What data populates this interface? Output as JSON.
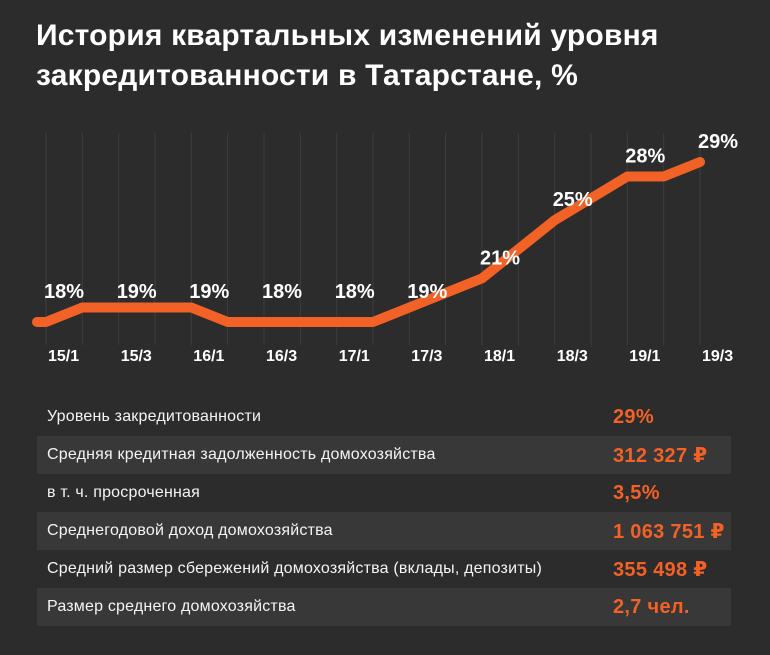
{
  "page": {
    "background": "#2C2C2C",
    "accent_color": "#F26125",
    "text_color": "#FFFFFF"
  },
  "title": {
    "full": "История квартальных изменений уровня закредитованности в Татарстане, %",
    "lines": [
      "История квартальных изменений уровня",
      "закредитованности в Татарстане, %"
    ]
  },
  "chart_data": {
    "type": "line",
    "title": "История квартальных изменений уровня закредитованности в Татарстане, %",
    "series_name": "Уровень закредитованности",
    "unit": "%",
    "categories": [
      "15/1",
      "15/3",
      "16/1",
      "16/3",
      "17/1",
      "17/3",
      "18/1",
      "18/3",
      "19/1",
      "19/3"
    ],
    "values": [
      18,
      19,
      19,
      18,
      18,
      19,
      21,
      25,
      28,
      29
    ],
    "interpolated_quarter_values": [
      18,
      19,
      19,
      19,
      19,
      18,
      18,
      18,
      18,
      18,
      19,
      20,
      21,
      23,
      25,
      26.5,
      28,
      28,
      29
    ],
    "ylim": [
      16,
      31
    ],
    "grid": "vertical-only",
    "legend_position": "none",
    "line_color": "#F26125",
    "data_label_color": "#FFFFFF",
    "gridline_color": "#3E3E3E"
  },
  "table": {
    "rows": [
      {
        "label": "Уровень закредитованности",
        "value": "29%"
      },
      {
        "label": "Средняя кредитная  задолженность домохозяйства",
        "value": "312 327 ₽"
      },
      {
        "label": "в т. ч. просроченная",
        "value": "3,5%"
      },
      {
        "label": "Среднегодовой доход  домохозяйства",
        "value": "1 063 751 ₽"
      },
      {
        "label": "Средний размер сбережений домохозяйства (вклады, депозиты)",
        "value": "355 498 ₽"
      },
      {
        "label": "Размер среднего домохозяйства",
        "value": "2,7 чел."
      }
    ]
  }
}
